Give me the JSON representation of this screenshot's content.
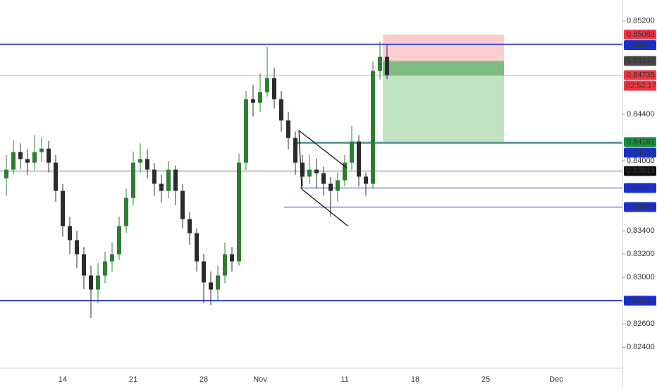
{
  "chart_data": {
    "type": "candlestick",
    "categories": [
      null,
      null,
      null,
      null,
      null,
      null,
      null,
      null,
      "14",
      null,
      null,
      null,
      null,
      null,
      null,
      null,
      null,
      null,
      "21",
      null,
      null,
      null,
      null,
      null,
      null,
      null,
      null,
      null,
      "28",
      null,
      null,
      null,
      null,
      null,
      null,
      null,
      "Nov",
      null,
      null,
      null,
      null,
      null,
      null,
      null,
      null,
      null,
      null,
      null,
      "11",
      null,
      null,
      null,
      null,
      null,
      null,
      null,
      null,
      null,
      "18",
      null,
      null,
      null,
      null,
      null,
      null,
      null,
      null,
      null,
      "25",
      null,
      null,
      null,
      null,
      null,
      null,
      null,
      null,
      null,
      "Dec"
    ],
    "open": [
      0.8385,
      0.83924,
      0.84075,
      0.84015,
      0.83984,
      0.84075,
      0.84105,
      0.83984,
      0.83742,
      0.8344,
      0.83319,
      0.83198,
      0.83016,
      0.82895,
      0.83016,
      0.83137,
      0.83198,
      0.8344,
      0.83682,
      0.83984,
      0.84015,
      0.83924,
      0.83803,
      0.83742,
      0.83924,
      0.83742,
      0.835,
      0.83379,
      0.83137,
      0.82956,
      0.82895,
      0.83016,
      0.83198,
      0.83137,
      0.83984,
      0.84529,
      0.84498,
      0.84589,
      0.8471,
      0.84529,
      0.84347,
      0.84196,
      0.83984,
      0.83864,
      0.83924,
      0.83894,
      0.83803,
      0.83742,
      0.83833,
      0.83984,
      0.84166,
      0.83864,
      0.83803,
      0.84771,
      0.84892,
      null,
      null,
      null,
      null,
      null,
      null,
      null,
      null,
      null,
      null,
      null,
      null,
      null,
      null,
      null,
      null,
      null,
      null,
      null,
      null,
      null,
      null,
      null,
      null
    ],
    "high": [
      0.8405,
      0.8418,
      0.8415,
      0.841,
      0.8422,
      0.842,
      0.8417,
      0.8405,
      0.838,
      0.8352,
      0.834,
      0.8326,
      0.831,
      0.8312,
      0.8322,
      0.833,
      0.8352,
      0.8376,
      0.8408,
      0.8415,
      0.841,
      0.8398,
      0.8388,
      0.84,
      0.8396,
      0.838,
      0.8356,
      0.8342,
      0.832,
      0.8305,
      0.831,
      0.833,
      0.8326,
      0.8406,
      0.846,
      0.8465,
      0.8475,
      0.8498,
      0.848,
      0.846,
      0.8442,
      0.8425,
      0.8405,
      0.8405,
      0.8402,
      0.8395,
      0.8386,
      0.839,
      0.8405,
      0.843,
      0.8422,
      0.839,
      0.8485,
      0.8502,
      0.85,
      null,
      null,
      null,
      null,
      null,
      null,
      null,
      null,
      null,
      null,
      null,
      null,
      null,
      null,
      null,
      null,
      null,
      null,
      null,
      null,
      null,
      null,
      null,
      null
    ],
    "low": [
      0.837,
      0.8388,
      0.8393,
      0.8388,
      0.8392,
      0.8399,
      0.839,
      0.8365,
      0.8335,
      0.832,
      0.8308,
      0.829,
      0.8265,
      0.8278,
      0.8295,
      0.8305,
      0.8315,
      0.8338,
      0.8362,
      0.839,
      0.8385,
      0.837,
      0.8364,
      0.8368,
      0.8362,
      0.8342,
      0.8328,
      0.8305,
      0.8278,
      0.8276,
      0.828,
      0.8295,
      0.8305,
      0.831,
      0.8392,
      0.8438,
      0.8442,
      0.8455,
      0.8445,
      0.8425,
      0.841,
      0.8388,
      0.8378,
      0.838,
      0.8376,
      0.837,
      0.8352,
      0.8365,
      0.8378,
      0.8392,
      0.8378,
      0.837,
      0.8376,
      0.847,
      0.847,
      null,
      null,
      null,
      null,
      null,
      null,
      null,
      null,
      null,
      null,
      null,
      null,
      null,
      null,
      null,
      null,
      null,
      null,
      null,
      null,
      null,
      null,
      null,
      null
    ],
    "close": [
      0.83924,
      0.84075,
      0.84015,
      0.83984,
      0.84075,
      0.84105,
      0.83984,
      0.83742,
      0.8344,
      0.83319,
      0.83198,
      0.83016,
      0.82895,
      0.83016,
      0.83137,
      0.83198,
      0.8344,
      0.83682,
      0.83984,
      0.84015,
      0.83924,
      0.83803,
      0.83742,
      0.83924,
      0.83742,
      0.835,
      0.83379,
      0.83137,
      0.82956,
      0.82895,
      0.83016,
      0.83198,
      0.83137,
      0.83984,
      0.84529,
      0.84498,
      0.84589,
      0.8471,
      0.84529,
      0.84347,
      0.84196,
      0.83984,
      0.83864,
      0.83924,
      0.83894,
      0.83803,
      0.83742,
      0.83833,
      0.83984,
      0.84166,
      0.83864,
      0.83803,
      0.84771,
      0.84892,
      0.84735,
      null,
      null,
      null,
      null,
      null,
      null,
      null,
      null,
      null,
      null,
      null,
      null,
      null,
      null,
      null,
      null,
      null,
      null,
      null,
      null,
      null,
      null,
      null,
      null
    ],
    "up_color": "#2e7d32",
    "down_color": "#2b2b2b",
    "ylim": [
      0.8222,
      0.8538
    ],
    "yticks": [
      {
        "value": 0.852,
        "label": "0.85200"
      },
      {
        "value": 0.844,
        "label": "0.84400"
      },
      {
        "value": 0.84,
        "label": "0.84000"
      },
      {
        "value": 0.834,
        "label": "0.83400"
      },
      {
        "value": 0.832,
        "label": "0.83200"
      },
      {
        "value": 0.83,
        "label": "0.83000"
      },
      {
        "value": 0.826,
        "label": "0.82600"
      },
      {
        "value": 0.824,
        "label": "0.82400"
      }
    ],
    "levels": [
      {
        "value": 0.85083,
        "label": "0.85083",
        "color": "#f23645"
      },
      {
        "value": 0.85,
        "label": "0.85000",
        "color": "#1a2fd6"
      },
      {
        "value": 0.84857,
        "label": "0.84857",
        "color": "#4a4a4a"
      },
      {
        "value": 0.84735,
        "label": "0.84735",
        "color": "#f23645"
      },
      {
        "value": 0.84161,
        "label": "0.84161",
        "color": "#1e8e3e"
      },
      {
        "value": 0.84151,
        "label": "0.84151",
        "color": "#1a2fd6"
      },
      {
        "value": 0.83913,
        "label": "0.83913",
        "color": "#111111"
      },
      {
        "value": 0.83767,
        "label": "0.83767",
        "color": "#1a2fd6"
      },
      {
        "value": 0.83603,
        "label": "0.83603",
        "color": "#1a2fd6"
      },
      {
        "value": 0.828,
        "label": "0.82800",
        "color": "#1a2fd6"
      }
    ],
    "countdown": "02:52:17",
    "position": {
      "stop": 0.85083,
      "entry": 0.84857,
      "current": 0.84735,
      "target": 0.84161
    }
  }
}
